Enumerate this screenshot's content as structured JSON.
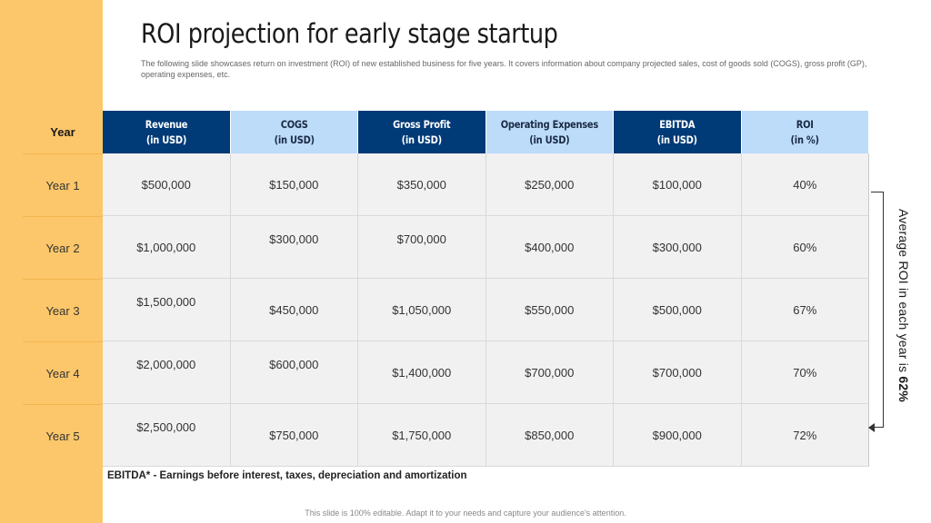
{
  "title": "ROI projection for early stage startup",
  "description": "The following slide showcases return on investment (ROI) of new established business for five years. It covers information about company projected sales, cost of goods sold (COGS), gross profit (GP), operating expenses, etc.",
  "table": {
    "year_header": "Year",
    "columns": [
      {
        "line1": "Revenue",
        "line2": "(in USD)"
      },
      {
        "line1": "COGS",
        "line2": "(in USD)"
      },
      {
        "line1": "Gross Profit",
        "line2": "(in USD)"
      },
      {
        "line1": "Operating Expenses",
        "line2": "(in USD)"
      },
      {
        "line1": "EBITDA",
        "line2": "(in USD)"
      },
      {
        "line1": "ROI",
        "line2": "(in %)"
      }
    ],
    "rows": [
      {
        "year": "Year 1",
        "values": [
          "$500,000",
          "$150,000",
          "$350,000",
          "$250,000",
          "$100,000",
          "40%"
        ]
      },
      {
        "year": "Year 2",
        "values": [
          "$1,000,000",
          "$300,000",
          "$700,000",
          "$400,000",
          "$300,000",
          "60%"
        ]
      },
      {
        "year": "Year 3",
        "values": [
          "$1,500,000",
          "$450,000",
          "$1,050,000",
          "$550,000",
          "$500,000",
          "67%"
        ]
      },
      {
        "year": "Year 4",
        "values": [
          "$2,000,000",
          "$600,000",
          "$1,400,000",
          "$700,000",
          "$700,000",
          "70%"
        ]
      },
      {
        "year": "Year 5",
        "values": [
          "$2,500,000",
          "$750,000",
          "$1,750,000",
          "$850,000",
          "$900,000",
          "72%"
        ]
      }
    ]
  },
  "average_note": {
    "prefix": "Average ROI in each year is ",
    "value": "62%"
  },
  "footnote": "EBITDA* - Earnings before interest, taxes, depreciation and amortization",
  "bottom_note": "This slide is 100% editable. Adapt it to your needs and capture your audience's attention.",
  "colors": {
    "sidebar": "#fcc76a",
    "header_dark": "#003a77",
    "header_light": "#bcdcfa",
    "cell_bg": "#f1f1f2"
  }
}
